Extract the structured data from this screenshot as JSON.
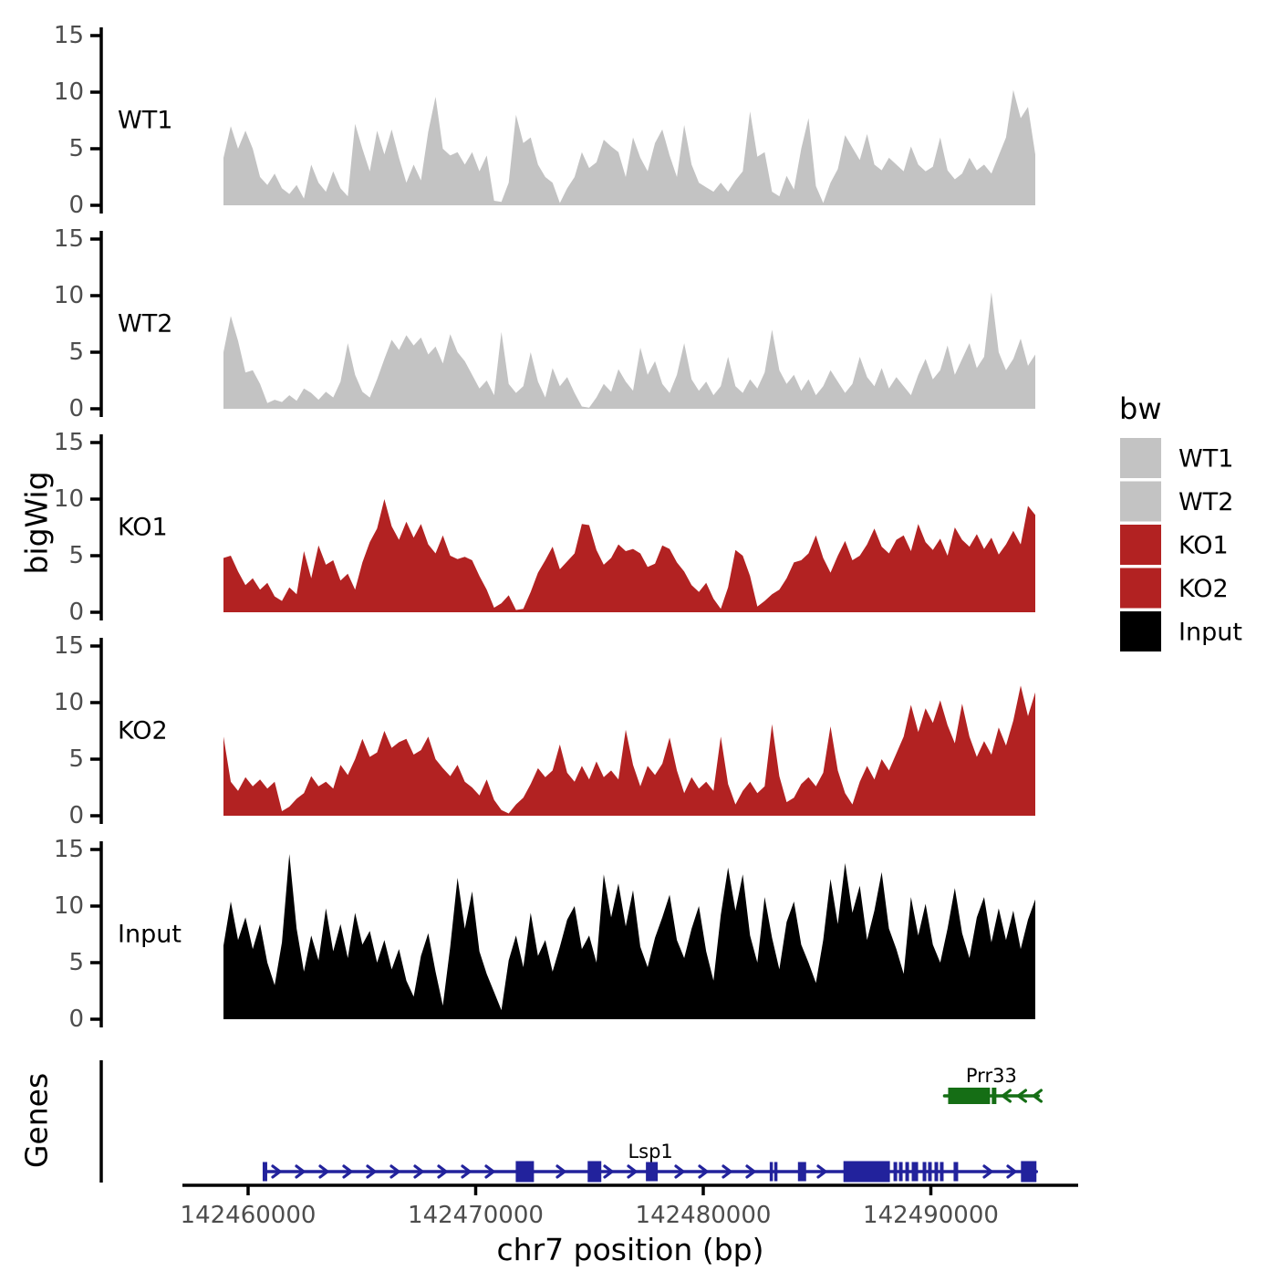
{
  "figure": {
    "background": "#ffffff",
    "y_axis_title": "bigWig",
    "genes_axis_title": "Genes",
    "x_axis_title": "chr7 position (bp)",
    "tick_label_color": "#4d4d4d",
    "axis_color": "#000000",
    "legend": {
      "title": "bw",
      "position": "right",
      "entries": [
        {
          "label": "WT1",
          "color": "#c3c3c3"
        },
        {
          "label": "WT2",
          "color": "#c3c3c3"
        },
        {
          "label": "KO1",
          "color": "#b22222"
        },
        {
          "label": "KO2",
          "color": "#b22222"
        },
        {
          "label": "Input",
          "color": "#000000"
        }
      ]
    }
  },
  "chart_data": {
    "type": "area",
    "title": "",
    "description": "Stacked bigWig coverage tracks (ChIP signal) over chr7 with gene model track",
    "x_axis": {
      "label": "chr7 position (bp)",
      "chromosome": "chr7",
      "ticks": [
        142460000,
        142470000,
        142480000,
        142490000
      ],
      "range_bp": [
        142457100,
        142496500
      ]
    },
    "y_axis": {
      "label": "bigWig",
      "ticks": [
        0,
        5,
        10,
        15
      ],
      "ylim": [
        0,
        15
      ]
    },
    "signal_span_bp": [
      142458920,
      142494560
    ],
    "tracks": [
      {
        "name": "WT1",
        "color": "#c3c3c3",
        "values": [
          4.2,
          7.0,
          5.0,
          6.6,
          5.0,
          2.5,
          1.8,
          2.8,
          1.5,
          1.0,
          1.8,
          0.6,
          3.6,
          2.0,
          1.2,
          3.0,
          1.5,
          0.8,
          7.2,
          5.0,
          3.0,
          6.6,
          4.5,
          6.7,
          4.2,
          2.0,
          3.6,
          2.2,
          6.5,
          9.6,
          5.0,
          4.4,
          4.7,
          3.6,
          4.7,
          3.0,
          4.4,
          0.4,
          0.3,
          2.0,
          8.0,
          5.5,
          6.0,
          3.6,
          2.5,
          2.0,
          0.2,
          1.5,
          2.5,
          4.7,
          3.3,
          3.8,
          5.8,
          5.2,
          4.7,
          2.5,
          6.0,
          4.2,
          3.0,
          5.5,
          6.7,
          4.4,
          2.5,
          7.1,
          3.6,
          2.0,
          1.6,
          1.2,
          2.0,
          1.2,
          2.2,
          3.0,
          8.3,
          4.3,
          4.7,
          1.2,
          0.8,
          2.6,
          1.4,
          5.0,
          7.7,
          1.7,
          0.2,
          2.0,
          3.2,
          6.2,
          5.1,
          4.0,
          6.3,
          3.6,
          3.1,
          4.2,
          3.6,
          3.0,
          5.2,
          3.6,
          3.0,
          3.4,
          6.0,
          3.1,
          2.3,
          2.8,
          4.2,
          3.1,
          3.6,
          2.8,
          4.4,
          6.0,
          10.2,
          7.7,
          8.7,
          4.5
        ]
      },
      {
        "name": "WT2",
        "color": "#c3c3c3",
        "values": [
          5.0,
          8.2,
          6.0,
          3.2,
          3.4,
          2.2,
          0.5,
          0.8,
          0.6,
          1.2,
          0.7,
          1.8,
          1.4,
          0.8,
          1.5,
          1.0,
          2.4,
          5.8,
          3.0,
          1.5,
          1.0,
          2.6,
          4.4,
          6.1,
          5.2,
          6.5,
          5.6,
          6.3,
          4.8,
          5.5,
          4.0,
          6.6,
          5.0,
          4.2,
          3.0,
          1.8,
          2.5,
          1.2,
          6.8,
          2.2,
          1.4,
          2.0,
          5.0,
          2.4,
          1.0,
          3.6,
          2.0,
          2.8,
          1.4,
          0.2,
          0.1,
          1.0,
          2.2,
          1.5,
          3.5,
          2.4,
          1.6,
          5.4,
          3.0,
          4.2,
          2.2,
          1.4,
          3.0,
          5.8,
          2.6,
          1.6,
          2.4,
          1.2,
          2.0,
          4.6,
          2.0,
          1.4,
          2.6,
          1.8,
          3.2,
          7.0,
          3.4,
          2.2,
          3.0,
          1.6,
          2.6,
          1.2,
          2.0,
          3.4,
          2.4,
          1.4,
          2.2,
          4.6,
          2.8,
          2.0,
          3.6,
          1.8,
          2.8,
          2.0,
          1.2,
          3.0,
          4.4,
          2.6,
          3.4,
          5.6,
          3.0,
          4.4,
          5.8,
          3.6,
          4.6,
          10.3,
          5.0,
          3.4,
          4.4,
          6.2,
          3.8,
          4.8
        ]
      },
      {
        "name": "KO1",
        "color": "#b22222",
        "values": [
          4.8,
          5.0,
          3.6,
          2.4,
          3.0,
          2.0,
          2.6,
          1.4,
          1.0,
          2.2,
          1.6,
          5.4,
          3.0,
          5.9,
          4.2,
          4.6,
          2.8,
          3.4,
          2.0,
          4.4,
          6.2,
          7.4,
          10.0,
          7.6,
          6.4,
          8.0,
          6.6,
          7.8,
          6.0,
          5.2,
          6.8,
          5.0,
          4.7,
          4.9,
          4.6,
          3.2,
          2.0,
          0.4,
          0.8,
          1.5,
          0.2,
          0.3,
          1.8,
          3.5,
          4.6,
          5.8,
          3.8,
          4.5,
          5.2,
          7.8,
          7.7,
          5.5,
          4.2,
          4.8,
          6.0,
          5.4,
          5.6,
          5.2,
          4.0,
          4.3,
          5.9,
          5.6,
          4.4,
          3.6,
          2.4,
          1.8,
          2.6,
          1.2,
          0.3,
          2.2,
          5.5,
          5.0,
          3.2,
          0.5,
          1.0,
          1.6,
          2.0,
          3.0,
          4.4,
          4.6,
          5.2,
          6.8,
          4.8,
          3.5,
          5.0,
          6.3,
          4.6,
          5.0,
          6.0,
          7.4,
          5.8,
          5.2,
          6.4,
          6.8,
          5.4,
          7.8,
          6.2,
          5.5,
          6.5,
          5.0,
          7.5,
          6.4,
          5.8,
          6.9,
          5.6,
          6.6,
          5.1,
          6.0,
          7.2,
          6.0,
          9.4,
          8.6
        ]
      },
      {
        "name": "KO2",
        "color": "#b22222",
        "values": [
          7.0,
          3.0,
          2.2,
          3.4,
          2.6,
          3.2,
          2.4,
          3.0,
          0.4,
          0.8,
          1.5,
          2.0,
          3.5,
          2.6,
          3.0,
          2.4,
          4.5,
          3.6,
          5.0,
          6.8,
          5.2,
          5.6,
          7.5,
          6.0,
          6.5,
          6.8,
          5.4,
          5.8,
          7.0,
          5.0,
          4.2,
          3.5,
          4.5,
          3.0,
          2.5,
          1.8,
          3.2,
          1.4,
          0.5,
          0.2,
          1.0,
          1.6,
          2.8,
          4.2,
          3.4,
          4.0,
          6.3,
          3.8,
          3.0,
          4.4,
          3.2,
          4.8,
          3.4,
          4.0,
          3.2,
          7.6,
          4.5,
          2.6,
          4.4,
          3.6,
          4.6,
          6.9,
          4.0,
          2.0,
          3.4,
          2.4,
          3.0,
          2.2,
          7.0,
          2.8,
          1.0,
          2.2,
          3.0,
          2.0,
          2.6,
          8.1,
          3.5,
          1.2,
          1.6,
          2.8,
          3.4,
          2.6,
          3.8,
          7.9,
          4.0,
          2.0,
          1.0,
          3.0,
          4.4,
          3.2,
          5.0,
          4.0,
          5.5,
          7.0,
          9.8,
          7.4,
          9.5,
          8.2,
          10.2,
          8.0,
          6.4,
          9.9,
          7.0,
          5.2,
          6.6,
          5.4,
          7.8,
          6.2,
          8.4,
          11.5,
          8.8,
          10.9
        ]
      },
      {
        "name": "Input",
        "color": "#000000",
        "values": [
          6.5,
          10.4,
          7.0,
          9.0,
          6.2,
          8.4,
          5.0,
          3.0,
          6.8,
          14.6,
          8.0,
          4.2,
          7.4,
          5.2,
          9.8,
          6.0,
          8.4,
          5.4,
          9.4,
          6.6,
          7.8,
          5.0,
          7.0,
          4.4,
          6.2,
          3.4,
          2.0,
          5.6,
          7.6,
          4.2,
          1.2,
          6.4,
          12.5,
          8.0,
          11.3,
          6.0,
          4.0,
          2.4,
          0.8,
          5.2,
          7.4,
          4.6,
          9.4,
          5.6,
          7.0,
          4.2,
          6.4,
          8.8,
          10.0,
          6.2,
          7.4,
          5.0,
          12.8,
          9.0,
          12.0,
          8.2,
          11.4,
          6.4,
          4.6,
          7.2,
          9.0,
          11.0,
          7.0,
          5.4,
          8.0,
          10.0,
          6.0,
          3.4,
          9.2,
          13.4,
          9.6,
          12.8,
          7.4,
          5.0,
          10.8,
          7.2,
          4.4,
          8.6,
          10.4,
          6.6,
          5.0,
          3.2,
          7.0,
          12.4,
          8.4,
          13.8,
          9.4,
          11.8,
          7.0,
          9.6,
          13.0,
          8.0,
          6.2,
          4.0,
          10.8,
          7.4,
          10.2,
          6.6,
          5.0,
          8.0,
          11.6,
          7.6,
          5.4,
          9.0,
          10.8,
          6.8,
          9.8,
          7.0,
          9.6,
          6.2,
          8.8,
          10.6
        ]
      }
    ],
    "genes": [
      {
        "name": "Lsp1",
        "strand": "+",
        "color": "#22229c",
        "start_bp": 142460720,
        "end_bp": 142494640,
        "exons_bp": [
          [
            142460640,
            142460840
          ],
          [
            142471760,
            142472560
          ],
          [
            142474920,
            142475520
          ],
          [
            142477480,
            142478000
          ],
          [
            142482920,
            142483040
          ],
          [
            142483120,
            142483240
          ],
          [
            142484160,
            142484520
          ],
          [
            142486160,
            142488200
          ],
          [
            142488360,
            142488520
          ],
          [
            142488600,
            142488760
          ],
          [
            142488880,
            142489040
          ],
          [
            142489160,
            142489440
          ],
          [
            142489640,
            142489800
          ],
          [
            142489880,
            142490040
          ],
          [
            142490160,
            142490320
          ],
          [
            142490400,
            142490560
          ],
          [
            142491000,
            142491200
          ],
          [
            142493960,
            142494640
          ]
        ]
      },
      {
        "name": "Prr33",
        "strand": "-",
        "color": "#156e15",
        "start_bp": 142490600,
        "end_bp": 142494720,
        "exons_bp": [
          [
            142490760,
            142492600
          ],
          [
            142492680,
            142492880
          ]
        ]
      }
    ]
  }
}
